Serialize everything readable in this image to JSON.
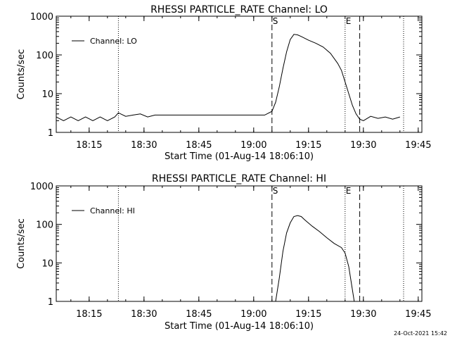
{
  "footer": {
    "timestamp": "24-Oct-2021 15:42"
  },
  "chart_data": [
    {
      "type": "line",
      "title": "RHESSI PARTICLE_RATE Channel: LO",
      "xlabel": "Start Time (01-Aug-14 18:06:10)",
      "ylabel": "Counts/sec",
      "yscale": "log",
      "xlim_minutes_after_1806": [
        0,
        100
      ],
      "ylim": [
        1,
        1000
      ],
      "x_ticks": [
        "18:15",
        "18:30",
        "18:45",
        "19:00",
        "19:15",
        "19:30",
        "19:45"
      ],
      "y_ticks": [
        "1",
        "10",
        "100",
        "1000"
      ],
      "legend": {
        "position": "top-left",
        "entries": [
          "Channel: LO"
        ]
      },
      "markers": [
        {
          "label": "S",
          "time": "19:05",
          "style": "dashed"
        },
        {
          "label": "E",
          "time": "19:25",
          "style": "dotted"
        },
        {
          "label": "",
          "time": "19:29",
          "style": "dashed"
        },
        {
          "label": "",
          "time": "18:23",
          "style": "dotted"
        },
        {
          "label": "",
          "time": "19:41",
          "style": "dotted"
        }
      ],
      "series": [
        {
          "name": "Channel: LO",
          "x": [
            "18:06",
            "18:08",
            "18:10",
            "18:12",
            "18:14",
            "18:16",
            "18:18",
            "18:20",
            "18:22",
            "18:23",
            "18:25",
            "18:27",
            "18:29",
            "18:31",
            "18:33",
            "18:36",
            "18:40",
            "18:44",
            "18:48",
            "18:52",
            "18:56",
            "19:00",
            "19:03",
            "19:05",
            "19:06",
            "19:07",
            "19:08",
            "19:09",
            "19:10",
            "19:11",
            "19:12",
            "19:13",
            "19:15",
            "19:17",
            "19:19",
            "19:21",
            "19:23",
            "19:24",
            "19:25",
            "19:26",
            "19:27",
            "19:28",
            "19:29",
            "19:30",
            "19:32",
            "19:34",
            "19:36",
            "19:38",
            "19:40"
          ],
          "values": [
            2.5,
            2.0,
            2.5,
            2.0,
            2.5,
            2.0,
            2.5,
            2.0,
            2.5,
            3.2,
            2.6,
            2.8,
            3.0,
            2.5,
            2.8,
            2.8,
            2.8,
            2.8,
            2.8,
            2.8,
            2.8,
            2.8,
            2.8,
            3.5,
            6,
            15,
            45,
            120,
            250,
            340,
            330,
            300,
            240,
            200,
            160,
            110,
            60,
            40,
            20,
            10,
            5,
            3,
            2.2,
            2.0,
            2.6,
            2.3,
            2.5,
            2.2,
            2.5
          ]
        }
      ]
    },
    {
      "type": "line",
      "title": "RHESSI PARTICLE_RATE Channel: HI",
      "xlabel": "Start Time (01-Aug-14 18:06:10)",
      "ylabel": "Counts/sec",
      "yscale": "log",
      "xlim_minutes_after_1806": [
        0,
        100
      ],
      "ylim": [
        1,
        1000
      ],
      "x_ticks": [
        "18:15",
        "18:30",
        "18:45",
        "19:00",
        "19:15",
        "19:30",
        "19:45"
      ],
      "y_ticks": [
        "1",
        "10",
        "100",
        "1000"
      ],
      "legend": {
        "position": "top-left",
        "entries": [
          "Channel: HI"
        ]
      },
      "markers": [
        {
          "label": "S",
          "time": "19:05",
          "style": "dashed"
        },
        {
          "label": "E",
          "time": "19:25",
          "style": "dotted"
        },
        {
          "label": "",
          "time": "19:29",
          "style": "dashed"
        },
        {
          "label": "",
          "time": "18:23",
          "style": "dotted"
        },
        {
          "label": "",
          "time": "19:41",
          "style": "dotted"
        }
      ],
      "series": [
        {
          "name": "Channel: HI",
          "x": [
            "19:06",
            "19:07",
            "19:08",
            "19:09",
            "19:10",
            "19:11",
            "19:12",
            "19:13",
            "19:14",
            "19:16",
            "19:18",
            "19:20",
            "19:22",
            "19:24",
            "19:25",
            "19:26",
            "19:27",
            "19:27.5"
          ],
          "values": [
            1.0,
            4,
            20,
            60,
            110,
            160,
            170,
            160,
            130,
            90,
            65,
            45,
            32,
            25,
            18,
            8,
            2,
            1.0
          ]
        }
      ]
    }
  ]
}
